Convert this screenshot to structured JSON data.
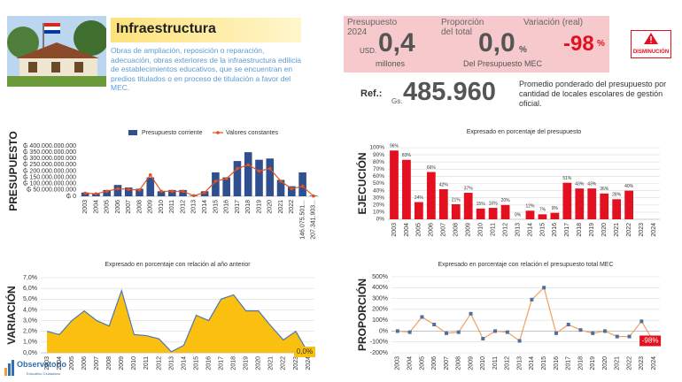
{
  "header": {
    "title": "Infraestructura",
    "description": "Obras de ampliación, reposición o reparación, adecuación, obras exteriores de la infraestructura edilicia de establecimientos educativos, que se encuentran en predios titulados o en proceso de titulación a favor del MEC."
  },
  "summary": {
    "budget": {
      "label": "Presupuesto 2024",
      "currency": "USD.",
      "value": "0,4",
      "unit": "millones"
    },
    "share": {
      "label": "Proporción del total",
      "value": "0,0",
      "unit": "%",
      "note": "Del Presupuesto MEC"
    },
    "change": {
      "label": "Variación (real)",
      "value": "-98",
      "unit": "%"
    }
  },
  "alert": {
    "label": "DISMINUCIÓN"
  },
  "reference": {
    "label": "Ref.:",
    "currency": "Gs.",
    "value": "485.960",
    "note": "Promedio ponderado del presupuesto por cantidad de locales escolares de gestión oficial."
  },
  "logo": {
    "name": "Observatorio",
    "tagline": "Educativo Ciudadano"
  },
  "chart_data": [
    {
      "type": "bar",
      "y_label": "PRESUPUESTO",
      "legend": "top",
      "categories": [
        "2003",
        "2004",
        "2005",
        "2006",
        "2007",
        "2008",
        "2009",
        "2010",
        "2011",
        "2012",
        "2013",
        "2014",
        "2015",
        "2016",
        "2017",
        "2018",
        "2019",
        "2020",
        "2021",
        "2022",
        "146.075.501...",
        "207.341.903..."
      ],
      "series": [
        {
          "name": "Presupuesto corriente",
          "type": "bar",
          "color": "#2f4f8f",
          "values": [
            30000000000,
            20000000000,
            50000000000,
            90000000000,
            70000000000,
            60000000000,
            150000000000,
            40000000000,
            50000000000,
            50000000000,
            5000000000,
            40000000000,
            190000000000,
            150000000000,
            280000000000,
            350000000000,
            290000000000,
            300000000000,
            130000000000,
            80000000000,
            190000000000,
            5000000000
          ]
        },
        {
          "name": "Valores constantes",
          "type": "line",
          "color": "#e8501a",
          "values": [
            25000000000,
            20000000000,
            40000000000,
            60000000000,
            55000000000,
            50000000000,
            170000000000,
            40000000000,
            40000000000,
            40000000000,
            5000000000,
            30000000000,
            120000000000,
            140000000000,
            220000000000,
            250000000000,
            200000000000,
            220000000000,
            120000000000,
            60000000000,
            80000000000,
            2000000000
          ]
        }
      ],
      "ylim": [
        0,
        400000000000
      ],
      "yticks": [
        {
          "value": 0,
          "label": "₲ 0"
        },
        {
          "value": 50000000000,
          "label": "₲ 50.000.000.000"
        },
        {
          "value": 100000000000,
          "label": "₲ 100.000.000.000"
        },
        {
          "value": 150000000000,
          "label": "₲ 150.000.000.000"
        },
        {
          "value": 200000000000,
          "label": "₲ 200.000.000.000"
        },
        {
          "value": 250000000000,
          "label": "₲ 250.000.000.000"
        },
        {
          "value": 300000000000,
          "label": "₲ 300.000.000.000"
        },
        {
          "value": 350000000000,
          "label": "₲ 350.000.000.000"
        },
        {
          "value": 400000000000,
          "label": "₲ 400.000.000.000"
        }
      ],
      "grid": false
    },
    {
      "type": "bar",
      "title": "Expresado en porcentaje del presupuesto",
      "y_label": "EJECUCIÓN",
      "categories": [
        "2003",
        "2004",
        "2005",
        "2006",
        "2007",
        "2008",
        "2009",
        "2010",
        "2011",
        "2012",
        "2013",
        "2014",
        "2015",
        "2016",
        "2017",
        "2018",
        "2019",
        "2020",
        "2021",
        "2022",
        "2023",
        "2024"
      ],
      "series": [
        {
          "type": "bar",
          "color": "#e3101f",
          "values": [
            96,
            83,
            24,
            66,
            42,
            21,
            37,
            15,
            16,
            20,
            0,
            12,
            7,
            9,
            51,
            43,
            43,
            36,
            28,
            40,
            null,
            null
          ],
          "value_labels": [
            "96%",
            "83%",
            "24%",
            "66%",
            "42%",
            "21%",
            "37%",
            "15%",
            "16%",
            "20%",
            "0%",
            "12%",
            "7%",
            "9%",
            "51%",
            "43%",
            "43%",
            "36%",
            "28%",
            "40%",
            null,
            null
          ]
        }
      ],
      "ylim": [
        0,
        100
      ],
      "yticks": [
        {
          "value": 0,
          "label": "0%"
        },
        {
          "value": 10,
          "label": "10%"
        },
        {
          "value": 20,
          "label": "20%"
        },
        {
          "value": 30,
          "label": "30%"
        },
        {
          "value": 40,
          "label": "40%"
        },
        {
          "value": 50,
          "label": "50%"
        },
        {
          "value": 60,
          "label": "60%"
        },
        {
          "value": 70,
          "label": "70%"
        },
        {
          "value": 80,
          "label": "80%"
        },
        {
          "value": 90,
          "label": "90%"
        },
        {
          "value": 100,
          "label": "100%"
        }
      ],
      "grid": true
    },
    {
      "type": "area",
      "title": "Expresado en porcentaje con relación al año anterior",
      "y_label": "VARIACIÓN",
      "categories": [
        "2003",
        "2004",
        "2005",
        "2006",
        "2007",
        "2008",
        "2009",
        "2010",
        "2011",
        "2012",
        "2013",
        "2014",
        "2015",
        "2016",
        "2017",
        "2018",
        "2019",
        "2020",
        "2021",
        "2022",
        "2023",
        "2024"
      ],
      "series": [
        {
          "type": "area",
          "color": "#fbbf0f",
          "line_color": "#4a78b5",
          "values": [
            2.0,
            1.7,
            3.0,
            3.9,
            3.0,
            2.5,
            5.8,
            1.7,
            1.6,
            1.3,
            0.1,
            0.7,
            3.5,
            3.0,
            5.0,
            5.4,
            3.9,
            3.9,
            2.5,
            1.2,
            2.0,
            0.0
          ],
          "value_labels": [
            null,
            null,
            null,
            null,
            null,
            null,
            null,
            null,
            null,
            null,
            null,
            null,
            null,
            null,
            null,
            null,
            null,
            null,
            null,
            null,
            null,
            "0,0%"
          ]
        }
      ],
      "ylim": [
        0,
        7
      ],
      "yticks": [
        {
          "value": 0,
          "label": "0,0%"
        },
        {
          "value": 1,
          "label": "1,0%"
        },
        {
          "value": 2,
          "label": "2,0%"
        },
        {
          "value": 3,
          "label": "3,0%"
        },
        {
          "value": 4,
          "label": "4,0%"
        },
        {
          "value": 5,
          "label": "5,0%"
        },
        {
          "value": 6,
          "label": "6,0%"
        },
        {
          "value": 7,
          "label": "7,0%"
        }
      ],
      "grid": true
    },
    {
      "type": "line",
      "title": "Expresado en porcentaje con relación el presupuesto total MEC",
      "y_label": "PROPORCIÓN",
      "categories": [
        "2003",
        "2004",
        "2005",
        "2006",
        "2007",
        "2008",
        "2009",
        "2010",
        "2011",
        "2012",
        "2013",
        "2014",
        "2015",
        "2016",
        "2017",
        "2018",
        "2019",
        "2020",
        "2021",
        "2022",
        "2023",
        "2024"
      ],
      "series": [
        {
          "type": "line",
          "color": "#f0a060",
          "marker_color": "#4f6fa0",
          "values": [
            0,
            -10,
            130,
            60,
            -20,
            -10,
            160,
            -70,
            0,
            -10,
            -90,
            290,
            400,
            -20,
            60,
            10,
            -20,
            0,
            -50,
            -50,
            90,
            -98
          ],
          "value_labels": [
            null,
            null,
            null,
            null,
            null,
            null,
            null,
            null,
            null,
            null,
            null,
            null,
            null,
            null,
            null,
            null,
            null,
            null,
            null,
            null,
            null,
            "-98%"
          ]
        }
      ],
      "ylim": [
        -200,
        500
      ],
      "yticks": [
        {
          "value": -200,
          "label": "-200%"
        },
        {
          "value": -100,
          "label": "-100%"
        },
        {
          "value": 0,
          "label": "0%"
        },
        {
          "value": 100,
          "label": "100%"
        },
        {
          "value": 200,
          "label": "200%"
        },
        {
          "value": 300,
          "label": "300%"
        },
        {
          "value": 400,
          "label": "400%"
        },
        {
          "value": 500,
          "label": "500%"
        }
      ],
      "grid": true
    }
  ]
}
